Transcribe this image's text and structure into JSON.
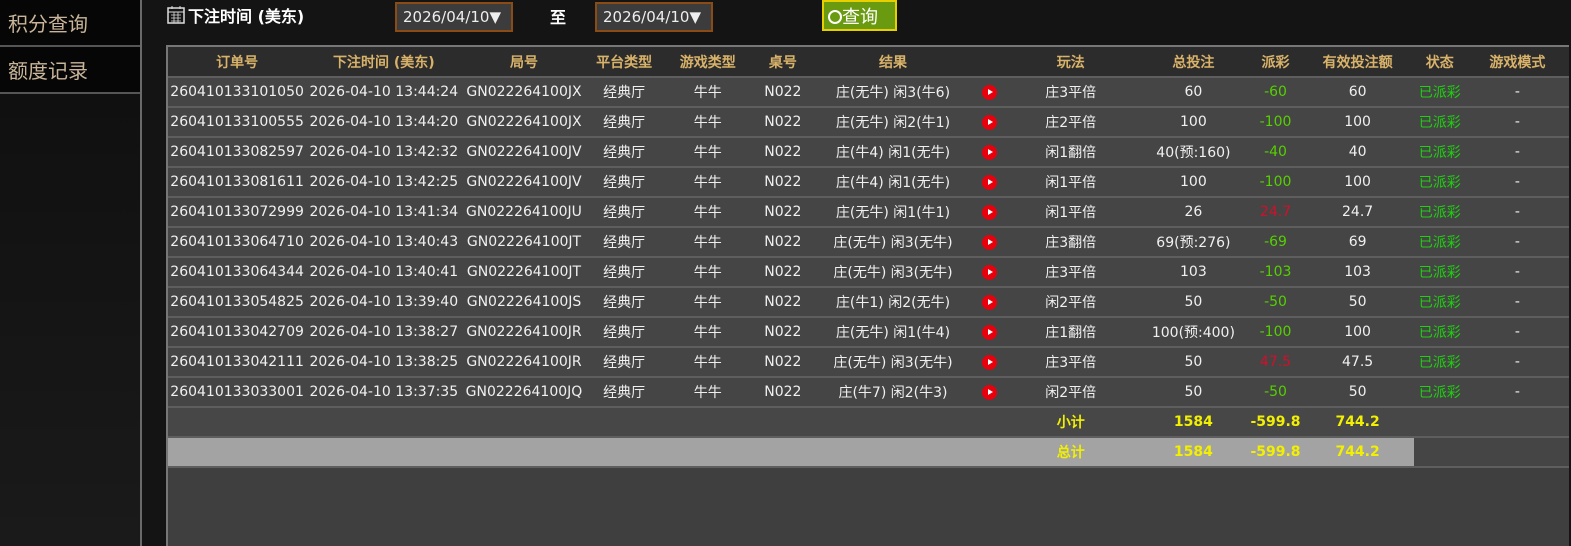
{
  "sidebar": {
    "items": [
      {
        "label": "积分查询"
      },
      {
        "label": "额度记录"
      }
    ]
  },
  "filter": {
    "label": "下注时间 (美东)",
    "start_date": "2026/04/10▼",
    "to_label": "至",
    "end_date": "2026/04/10▼",
    "query_label": "查询"
  },
  "table": {
    "headers": [
      "订单号",
      "下注时间 (美东)",
      "局号",
      "平台类型",
      "游戏类型",
      "桌号",
      "结果",
      "",
      "玩法",
      "总投注",
      "派彩",
      "有效投注额",
      "状态",
      "游戏模式"
    ],
    "rows": [
      [
        "260410133101050",
        "2026-04-10 13:44:24",
        "GN022264100JX",
        "经典厅",
        "牛牛",
        "N022",
        "庄(无牛) 闲3(牛6)",
        "庄3平倍",
        "60",
        "-60",
        "60",
        "已派彩",
        "-"
      ],
      [
        "260410133100555",
        "2026-04-10 13:44:20",
        "GN022264100JX",
        "经典厅",
        "牛牛",
        "N022",
        "庄(无牛) 闲2(牛1)",
        "庄2平倍",
        "100",
        "-100",
        "100",
        "已派彩",
        "-"
      ],
      [
        "260410133082597",
        "2026-04-10 13:42:32",
        "GN022264100JV",
        "经典厅",
        "牛牛",
        "N022",
        "庄(牛4) 闲1(无牛)",
        "闲1翻倍",
        "40(预:160)",
        "-40",
        "40",
        "已派彩",
        "-"
      ],
      [
        "260410133081611",
        "2026-04-10 13:42:25",
        "GN022264100JV",
        "经典厅",
        "牛牛",
        "N022",
        "庄(牛4) 闲1(无牛)",
        "闲1平倍",
        "100",
        "-100",
        "100",
        "已派彩",
        "-"
      ],
      [
        "260410133072999",
        "2026-04-10 13:41:34",
        "GN022264100JU",
        "经典厅",
        "牛牛",
        "N022",
        "庄(无牛) 闲1(牛1)",
        "闲1平倍",
        "26",
        "24.7",
        "24.7",
        "已派彩",
        "-"
      ],
      [
        "260410133064710",
        "2026-04-10 13:40:43",
        "GN022264100JT",
        "经典厅",
        "牛牛",
        "N022",
        "庄(无牛) 闲3(无牛)",
        "庄3翻倍",
        "69(预:276)",
        "-69",
        "69",
        "已派彩",
        "-"
      ],
      [
        "260410133064344",
        "2026-04-10 13:40:41",
        "GN022264100JT",
        "经典厅",
        "牛牛",
        "N022",
        "庄(无牛) 闲3(无牛)",
        "庄3平倍",
        "103",
        "-103",
        "103",
        "已派彩",
        "-"
      ],
      [
        "260410133054825",
        "2026-04-10 13:39:40",
        "GN022264100JS",
        "经典厅",
        "牛牛",
        "N022",
        "庄(牛1) 闲2(无牛)",
        "闲2平倍",
        "50",
        "-50",
        "50",
        "已派彩",
        "-"
      ],
      [
        "260410133042709",
        "2026-04-10 13:38:27",
        "GN022264100JR",
        "经典厅",
        "牛牛",
        "N022",
        "庄(无牛) 闲1(牛4)",
        "庄1翻倍",
        "100(预:400)",
        "-100",
        "100",
        "已派彩",
        "-"
      ],
      [
        "260410133042111",
        "2026-04-10 13:38:25",
        "GN022264100JR",
        "经典厅",
        "牛牛",
        "N022",
        "庄(无牛) 闲3(无牛)",
        "庄3平倍",
        "50",
        "47.5",
        "47.5",
        "已派彩",
        "-"
      ],
      [
        "260410133033001",
        "2026-04-10 13:37:35",
        "GN022264100JQ",
        "经典厅",
        "牛牛",
        "N022",
        "庄(牛7) 闲2(牛3)",
        "闲2平倍",
        "50",
        "-50",
        "50",
        "已派彩",
        "-"
      ]
    ],
    "subtotal": {
      "label": "小计",
      "total_bet": "1584",
      "payout": "-599.8",
      "valid_bet": "744.2"
    },
    "total": {
      "label": "总计",
      "total_bet": "1584",
      "payout": "-599.8",
      "valid_bet": "744.2"
    }
  },
  "colors": {
    "header_text": "#d9b26a",
    "negative": "#55d000",
    "positive": "#d0102a",
    "status": "#1fd010",
    "summary": "#f2f000"
  }
}
